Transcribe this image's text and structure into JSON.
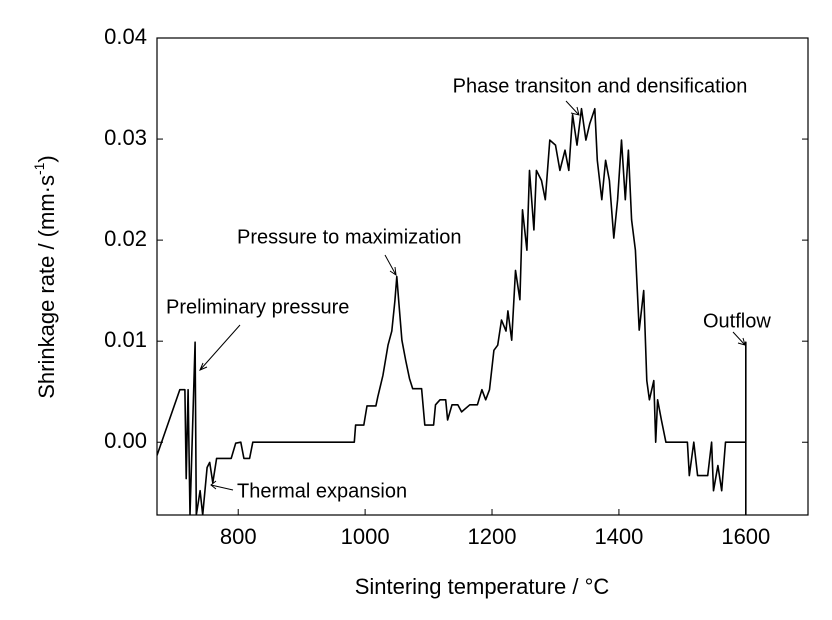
{
  "chart_data": {
    "type": "line",
    "x_label": "Sintering temperature / °C",
    "y_label": {
      "text": "Shrinkage rate / (mm·s",
      "sup": "-1",
      "tail": ")"
    },
    "annotations": [
      "Phase transiton and densification",
      "Pressure to maximization",
      "Preliminary pressure",
      "Thermal expansion",
      "Outflow"
    ],
    "xlim": [
      672,
      1698
    ],
    "xticks": [
      800,
      1000,
      1200,
      1400,
      1600
    ],
    "ylim": [
      -0.0072,
      0.04
    ],
    "yticks": [
      {
        "value": 0,
        "label": "0.00"
      },
      0.01,
      0.02,
      0.03,
      0.04
    ],
    "grid": false,
    "series": [
      {
        "color": "#000000",
        "x": [
          672,
          708,
          716,
          718,
          721,
          724,
          732,
          734,
          740,
          744,
          751,
          755,
          760,
          766,
          789,
          796,
          804,
          809,
          818,
          823,
          983,
          985,
          998,
          1003,
          1017,
          1020,
          1028,
          1036,
          1042,
          1047,
          1050,
          1053,
          1058,
          1064,
          1070,
          1075,
          1089,
          1094,
          1108,
          1111,
          1118,
          1127,
          1130,
          1137,
          1146,
          1152,
          1165,
          1177,
          1184,
          1190,
          1196,
          1203,
          1209,
          1215,
          1222,
          1225,
          1231,
          1237,
          1244,
          1248,
          1255,
          1259,
          1266,
          1270,
          1278,
          1284,
          1291,
          1300,
          1307,
          1315,
          1321,
          1327,
          1334,
          1341,
          1348,
          1354,
          1362,
          1366,
          1373,
          1379,
          1385,
          1392,
          1398,
          1404,
          1410,
          1415,
          1420,
          1426,
          1432,
          1439,
          1444,
          1448,
          1455,
          1458,
          1461,
          1467,
          1474,
          1508,
          1511,
          1518,
          1524,
          1540,
          1546,
          1549,
          1556,
          1562,
          1568,
          1597,
          1600,
          1600,
          1600
        ],
        "values": [
          -0.0013,
          0.0052,
          0.0052,
          -0.0036,
          0.0052,
          -0.0072,
          0.0099,
          -0.0072,
          -0.0048,
          -0.0072,
          -0.0025,
          -0.002,
          -0.004,
          -0.0016,
          -0.0016,
          -0.0001,
          0,
          -0.0016,
          -0.0016,
          0,
          0,
          0.0017,
          0.0017,
          0.0036,
          0.0036,
          0.0045,
          0.0066,
          0.0096,
          0.011,
          0.014,
          0.0164,
          0.014,
          0.0101,
          0.0081,
          0.0063,
          0.0053,
          0.0053,
          0.0017,
          0.0017,
          0.0037,
          0.0042,
          0.0042,
          0.0022,
          0.0037,
          0.0037,
          0.003,
          0.0037,
          0.0037,
          0.0052,
          0.0042,
          0.0052,
          0.0091,
          0.0096,
          0.0121,
          0.011,
          0.013,
          0.0101,
          0.017,
          0.0141,
          0.023,
          0.019,
          0.0269,
          0.021,
          0.0269,
          0.0259,
          0.024,
          0.0299,
          0.0294,
          0.0269,
          0.0289,
          0.0269,
          0.0324,
          0.0294,
          0.033,
          0.0299,
          0.0315,
          0.033,
          0.0279,
          0.024,
          0.0279,
          0.0259,
          0.0202,
          0.024,
          0.0299,
          0.024,
          0.0289,
          0.022,
          0.019,
          0.0111,
          0.015,
          0.0061,
          0.0042,
          0.0061,
          0,
          0.0042,
          0.0022,
          0,
          0,
          -0.0033,
          0,
          -0.0033,
          -0.0033,
          0,
          -0.0048,
          -0.0023,
          -0.0048,
          0,
          0,
          0,
          0.0099,
          -0.0072
        ]
      }
    ]
  }
}
